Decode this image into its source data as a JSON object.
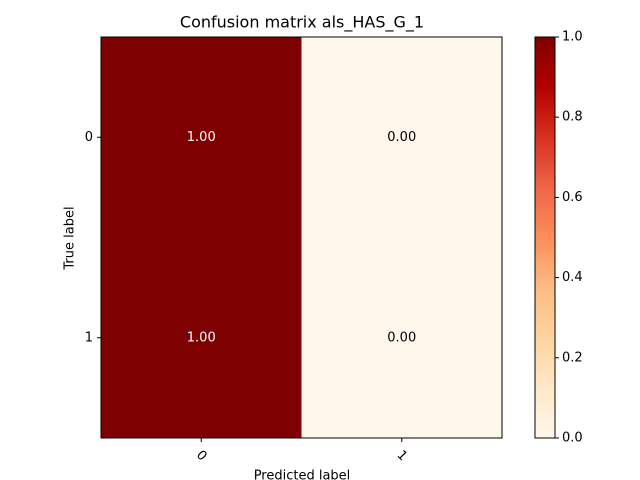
{
  "chart_data": {
    "type": "heatmap",
    "title": "Confusion matrix als_HAS_G_1",
    "x_label": "Predicted label",
    "y_label": "True label",
    "x_categories": [
      "0",
      "1"
    ],
    "y_categories": [
      "0",
      "1"
    ],
    "values": [
      [
        1,
        0
      ],
      [
        1,
        0
      ]
    ],
    "value_labels": [
      [
        "1.00",
        "0.00"
      ],
      [
        "1.00",
        "0.00"
      ]
    ],
    "colormap": [
      "#fff7ec",
      "#fee8c8",
      "#fdd49e",
      "#fdbb84",
      "#fc8d59",
      "#ef6548",
      "#d7301f",
      "#b30000",
      "#7f0000"
    ],
    "clim": [
      0,
      1
    ],
    "cticks": [
      {
        "value": 0,
        "label": "0.0"
      },
      0.2,
      0.4,
      0.6,
      0.8,
      {
        "value": 1,
        "label": "1.0"
      }
    ]
  }
}
